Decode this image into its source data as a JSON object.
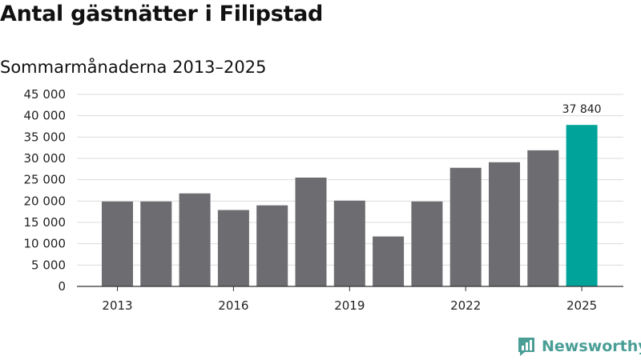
{
  "title": "Antal gästnätter i Filipstad",
  "subtitle": "Sommarmånaderna 2013–2025",
  "brand": "Newsworthy",
  "colors": {
    "bar": "#6d6c70",
    "highlight": "#00a39a",
    "grid": "#dcdcdc",
    "axis": "#333333",
    "brand": "#4a9e96"
  },
  "chart_data": {
    "type": "bar",
    "title": "Antal gästnätter i Filipstad",
    "subtitle": "Sommarmånaderna 2013–2025",
    "xlabel": "",
    "ylabel": "",
    "categories": [
      "2013",
      "2014",
      "2015",
      "2016",
      "2017",
      "2018",
      "2019",
      "2020",
      "2021",
      "2022",
      "2023",
      "2024",
      "2025"
    ],
    "values": [
      19900,
      19900,
      21800,
      17900,
      19000,
      25500,
      20100,
      11700,
      19900,
      27800,
      29100,
      31900,
      37840
    ],
    "x_tick_labels": [
      "2013",
      "2016",
      "2019",
      "2022",
      "2025"
    ],
    "y_ticks": [
      0,
      5000,
      10000,
      15000,
      20000,
      25000,
      30000,
      35000,
      40000,
      45000
    ],
    "y_tick_labels": [
      "0",
      "5 000",
      "10 000",
      "15 000",
      "20 000",
      "25 000",
      "30 000",
      "35 000",
      "40 000",
      "45 000"
    ],
    "ylim": [
      0,
      45000
    ],
    "highlight_index": 12,
    "data_labels": [
      {
        "index": 12,
        "text": "37 840"
      }
    ],
    "grid": true
  }
}
